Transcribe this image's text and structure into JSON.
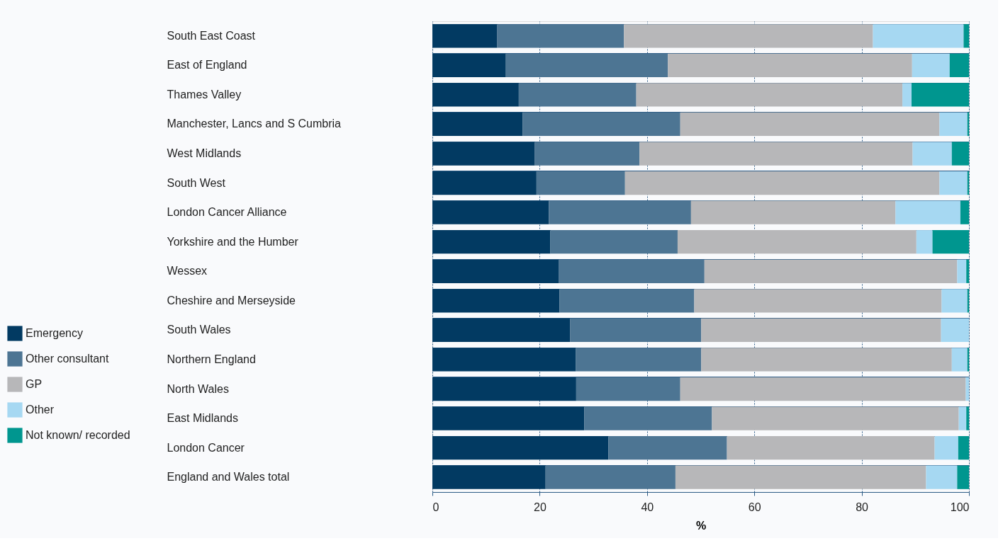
{
  "chart_data": {
    "type": "bar",
    "orientation": "horizontal",
    "stacked": true,
    "categories": [
      "South East Coast",
      "East of England",
      "Thames Valley",
      "Manchester, Lancs and S Cumbria",
      "West Midlands",
      "South West",
      "London Cancer Alliance",
      "Yorkshire and the Humber",
      "Wessex",
      "Cheshire and Merseyside",
      "South Wales",
      "Northern England",
      "North Wales",
      "East Midlands",
      "London Cancer",
      "England and Wales total"
    ],
    "series": [
      {
        "name": "Emergency",
        "color": "#023a62",
        "values": [
          12.1,
          13.7,
          16.1,
          16.8,
          19.1,
          19.4,
          21.7,
          22.0,
          23.6,
          23.7,
          25.7,
          26.7,
          26.8,
          28.3,
          32.8,
          21.1
        ]
      },
      {
        "name": "Other consultant",
        "color": "#4d7593",
        "values": [
          23.6,
          30.2,
          21.9,
          29.4,
          19.5,
          16.5,
          26.5,
          23.7,
          27.1,
          25.1,
          24.4,
          23.4,
          19.4,
          23.8,
          22.1,
          24.2
        ]
      },
      {
        "name": "GP",
        "color": "#b7b7b9",
        "values": [
          46.4,
          45.5,
          49.6,
          48.3,
          50.9,
          58.6,
          38.1,
          44.5,
          47.1,
          46.1,
          44.7,
          46.7,
          53.2,
          46.0,
          38.7,
          46.7
        ]
      },
      {
        "name": "Other",
        "color": "#a6d8f2",
        "values": [
          16.9,
          7.0,
          1.7,
          5.2,
          7.3,
          5.2,
          12.1,
          3.0,
          1.7,
          4.8,
          5.2,
          2.9,
          0.6,
          1.4,
          4.4,
          5.8
        ]
      },
      {
        "name": "Not known/ recorded",
        "color": "#00968f",
        "values": [
          1.0,
          3.6,
          10.7,
          0.3,
          3.2,
          0.3,
          1.6,
          6.8,
          0.5,
          0.3,
          0.0,
          0.3,
          0.0,
          0.5,
          2.0,
          2.2
        ]
      }
    ],
    "xlabel": "%",
    "xlim": [
      0,
      100
    ],
    "xticks": [
      0,
      20,
      40,
      60,
      80,
      100
    ],
    "grid": true,
    "legend": "bottom left"
  }
}
